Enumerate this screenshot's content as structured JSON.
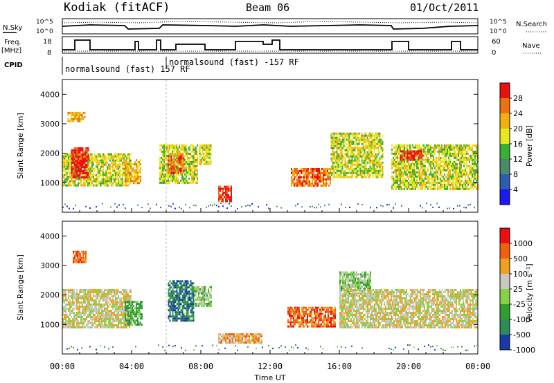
{
  "header": {
    "station": "Kodiak (fitACF)",
    "beam": "Beam 06",
    "date": "01/Oct/2011"
  },
  "status_panel": {
    "nsky_label": "N.Sky",
    "nsearch_label": "N.Search",
    "noise_ticks": [
      "10^5",
      "10^0"
    ],
    "freq_label_1": "Freq.",
    "freq_label_2": "[MHz]",
    "freq_ticks": [
      "18",
      "8"
    ],
    "nave_label": "Nave",
    "nave_ticks": [
      "60",
      "0"
    ],
    "cpid_label": "CPID",
    "cpid_modes": [
      {
        "text": "normalsound (fast) 157 RF"
      },
      {
        "text": "normalsound (fast) -157 RF"
      }
    ]
  },
  "chart_data": [
    {
      "type": "heatmap",
      "parameter": "power",
      "ylabel": "Slant Range [km]",
      "ylim": [
        0,
        4500
      ],
      "yticks": [
        "1000",
        "2000",
        "3000",
        "4000"
      ],
      "colorbar": {
        "label": "Power [dB]",
        "ticks": [
          "4",
          "8",
          "12",
          "16",
          "20",
          "24",
          "28"
        ],
        "colors": [
          "#1a1af0",
          "#2a5fb0",
          "#4a8a6a",
          "#38b038",
          "#e8e820",
          "#f0b010",
          "#f07010",
          "#e81010"
        ]
      },
      "echo_regions": [
        {
          "t0": 0.0,
          "t1": 4.0,
          "r0": 900,
          "r1": 2000,
          "level": 4
        },
        {
          "t0": 0.5,
          "t1": 1.5,
          "r0": 1200,
          "r1": 2200,
          "level": 7
        },
        {
          "t0": 0.3,
          "t1": 1.3,
          "r0": 3100,
          "r1": 3400,
          "level": 5
        },
        {
          "t0": 3.6,
          "t1": 4.5,
          "r0": 1000,
          "r1": 1800,
          "level": 5
        },
        {
          "t0": 5.6,
          "t1": 7.8,
          "r0": 1000,
          "r1": 2300,
          "level": 4
        },
        {
          "t0": 6.1,
          "t1": 7.0,
          "r0": 1300,
          "r1": 2000,
          "level": 6
        },
        {
          "t0": 7.9,
          "t1": 8.6,
          "r0": 1600,
          "r1": 2300,
          "level": 4
        },
        {
          "t0": 9.0,
          "t1": 9.8,
          "r0": 350,
          "r1": 900,
          "level": 7
        },
        {
          "t0": 13.2,
          "t1": 15.5,
          "r0": 900,
          "r1": 1500,
          "level": 6
        },
        {
          "t0": 15.5,
          "t1": 18.5,
          "r0": 1200,
          "r1": 2700,
          "level": 4
        },
        {
          "t0": 19.0,
          "t1": 24.0,
          "r0": 800,
          "r1": 2300,
          "level": 4
        },
        {
          "t0": 19.5,
          "t1": 20.8,
          "r0": 1800,
          "r1": 2100,
          "level": 7
        }
      ]
    },
    {
      "type": "heatmap",
      "parameter": "velocity",
      "ylabel": "Slant Range [km]",
      "ylim": [
        0,
        4500
      ],
      "yticks": [
        "1000",
        "2000",
        "3000",
        "4000"
      ],
      "colorbar": {
        "label": "Velocity [m s⁻¹]",
        "ticks": [
          "1000",
          "500",
          "100",
          "25",
          "-25",
          "-100",
          "-500",
          "-1000"
        ],
        "colors": [
          "#1a3aa8",
          "#2f8a5a",
          "#2fa02f",
          "#88d048",
          "#c8c8c0",
          "#f0a020",
          "#f06010",
          "#e81010"
        ]
      },
      "echo_regions": [
        {
          "t0": 0.0,
          "t1": 4.0,
          "r0": 900,
          "r1": 2200,
          "level": 4
        },
        {
          "t0": 0.6,
          "t1": 1.4,
          "r0": 3100,
          "r1": 3500,
          "level": 6
        },
        {
          "t0": 3.6,
          "t1": 4.6,
          "r0": 1000,
          "r1": 1800,
          "level": 2
        },
        {
          "t0": 6.1,
          "t1": 7.6,
          "r0": 1100,
          "r1": 2500,
          "level": 1
        },
        {
          "t0": 7.6,
          "t1": 8.6,
          "r0": 1600,
          "r1": 2300,
          "level": 3
        },
        {
          "t0": 9.0,
          "t1": 11.5,
          "r0": 350,
          "r1": 700,
          "level": 5
        },
        {
          "t0": 13.0,
          "t1": 15.8,
          "r0": 900,
          "r1": 1600,
          "level": 6
        },
        {
          "t0": 16.0,
          "t1": 17.8,
          "r0": 2000,
          "r1": 2800,
          "level": 3
        },
        {
          "t0": 16.0,
          "t1": 24.0,
          "r0": 900,
          "r1": 2200,
          "level": 4
        }
      ]
    }
  ],
  "time_axis": {
    "xlabel": "Time UT",
    "xlim": [
      0,
      24
    ],
    "ticks": [
      "00:00",
      "04:00",
      "08:00",
      "12:00",
      "16:00",
      "20:00",
      "00:00"
    ]
  }
}
